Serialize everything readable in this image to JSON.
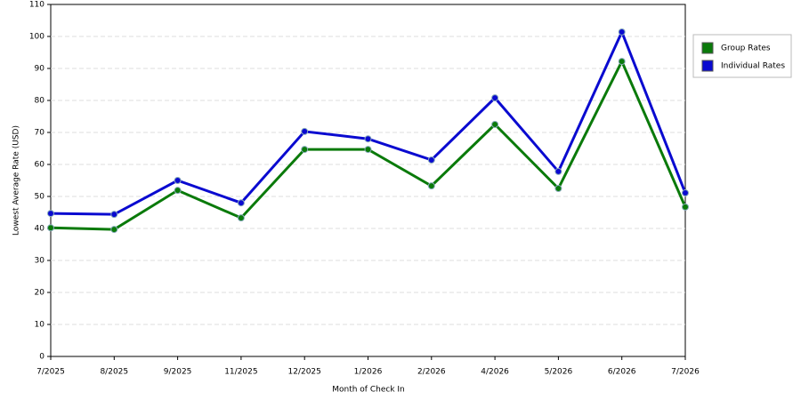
{
  "chart_data": {
    "type": "line",
    "x_label": "Month of Check In",
    "y_label": "Lowest Average Rate (USD)",
    "categories": [
      "7/2025",
      "8/2025",
      "9/2025",
      "11/2025",
      "12/2025",
      "1/2026",
      "2/2026",
      "4/2026",
      "5/2026",
      "6/2026",
      "7/2026"
    ],
    "series": [
      {
        "name": "Group Rates",
        "color": "#0a7a0a",
        "values": [
          40.2,
          39.7,
          51.9,
          43.3,
          64.7,
          64.7,
          53.3,
          72.5,
          52.5,
          92.2,
          46.7
        ]
      },
      {
        "name": "Individual Rates",
        "color": "#0a0ad0",
        "values": [
          44.7,
          44.4,
          55,
          48,
          70.3,
          68,
          61.4,
          80.8,
          57.8,
          101.4,
          51.1
        ]
      }
    ],
    "ylim": [
      0,
      110
    ],
    "yticks": [
      0,
      10,
      20,
      30,
      40,
      50,
      60,
      70,
      80,
      90,
      100,
      110
    ],
    "grid": true,
    "legend": "right"
  }
}
